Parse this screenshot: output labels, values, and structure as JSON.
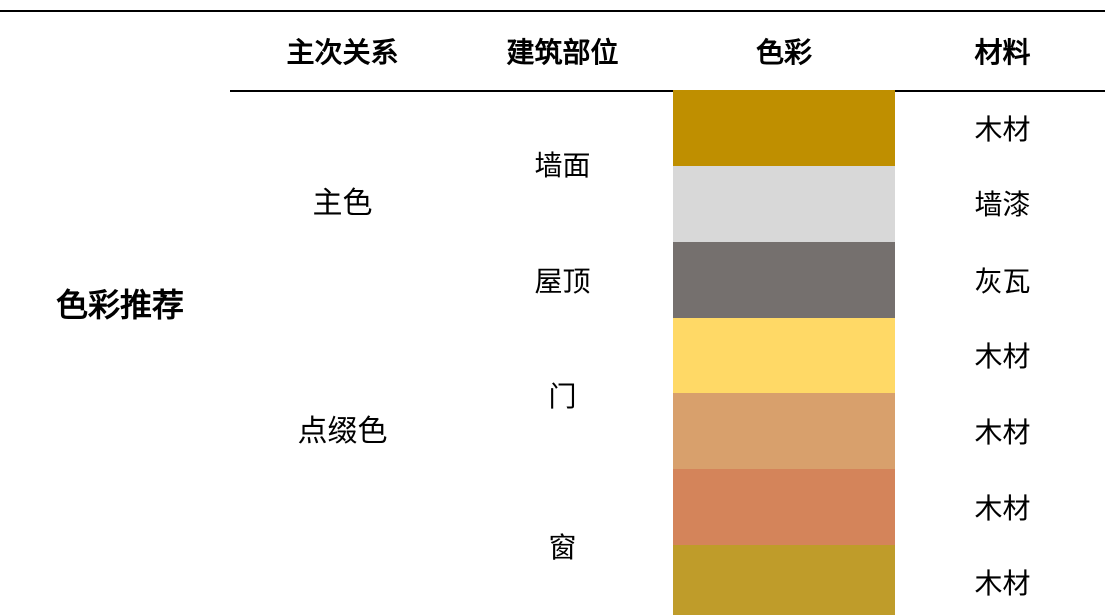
{
  "headers": {
    "role": "主次关系",
    "part": "建筑部位",
    "color": "色彩",
    "material": "材料"
  },
  "left_title": "色彩推荐",
  "roles": {
    "main": "主色",
    "accent": "点缀色"
  },
  "parts": {
    "wall": "墙面",
    "roof": "屋顶",
    "door": "门",
    "window": "窗"
  },
  "swatches": [
    {
      "color": "#BF8F00"
    },
    {
      "color": "#D8D8D8"
    },
    {
      "color": "#75706E"
    },
    {
      "color": "#FFD966"
    },
    {
      "color": "#D8A06C"
    },
    {
      "color": "#D4845A"
    },
    {
      "color": "#BF9C2A"
    }
  ],
  "materials": [
    "木材",
    "墙漆",
    "灰瓦",
    "木材",
    "木材",
    "木材",
    "木材"
  ]
}
